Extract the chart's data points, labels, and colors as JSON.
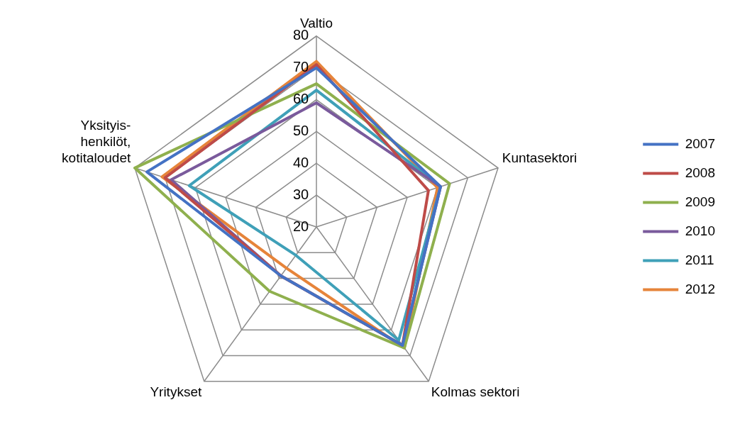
{
  "chart_data": {
    "type": "radar",
    "categories": [
      "Valtio",
      "Kuntasektori",
      "Kolmas sektori",
      "Yritykset",
      "Yksityis- henkilöt, kotitaloudet"
    ],
    "ylim": [
      20,
      80
    ],
    "yticks": [
      20,
      30,
      40,
      50,
      60,
      70,
      80
    ],
    "grid": true,
    "legend": "right",
    "series": [
      {
        "name": "2007",
        "color": "#4472c4",
        "values": [
          70,
          61,
          66,
          39,
          76
        ]
      },
      {
        "name": "2008",
        "color": "#be4b48",
        "values": [
          71,
          57,
          66,
          39,
          70
        ]
      },
      {
        "name": "2009",
        "color": "#8fb04e",
        "values": [
          65,
          64,
          67,
          45,
          80
        ]
      },
      {
        "name": "2010",
        "color": "#7a5a9c",
        "values": [
          59,
          61,
          66,
          39,
          68
        ]
      },
      {
        "name": "2011",
        "color": "#3fa0b8",
        "values": [
          63,
          61,
          64,
          31,
          62
        ]
      },
      {
        "name": "2012",
        "color": "#e6843a",
        "values": [
          72,
          60,
          67,
          36,
          71
        ]
      }
    ]
  }
}
